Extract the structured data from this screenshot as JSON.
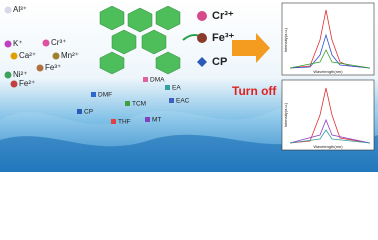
{
  "ions": [
    "Al³⁺",
    "K⁺",
    "Cr³⁺",
    "Ca²⁺",
    "Mn²⁺",
    "Fe³⁺",
    "Ni²⁺",
    "Fe²⁺"
  ],
  "analytes": [
    "Cr³⁺",
    "Fe³⁺",
    "CP"
  ],
  "turn_off": "Turn off",
  "solvents": [
    "DMA",
    "EA",
    "DMF",
    "EAC",
    "TCM",
    "CP",
    "THF",
    "MT"
  ],
  "plots": {
    "x_label": "Wavelength(nm)",
    "y_label": "Intensity(a.u.)"
  }
}
